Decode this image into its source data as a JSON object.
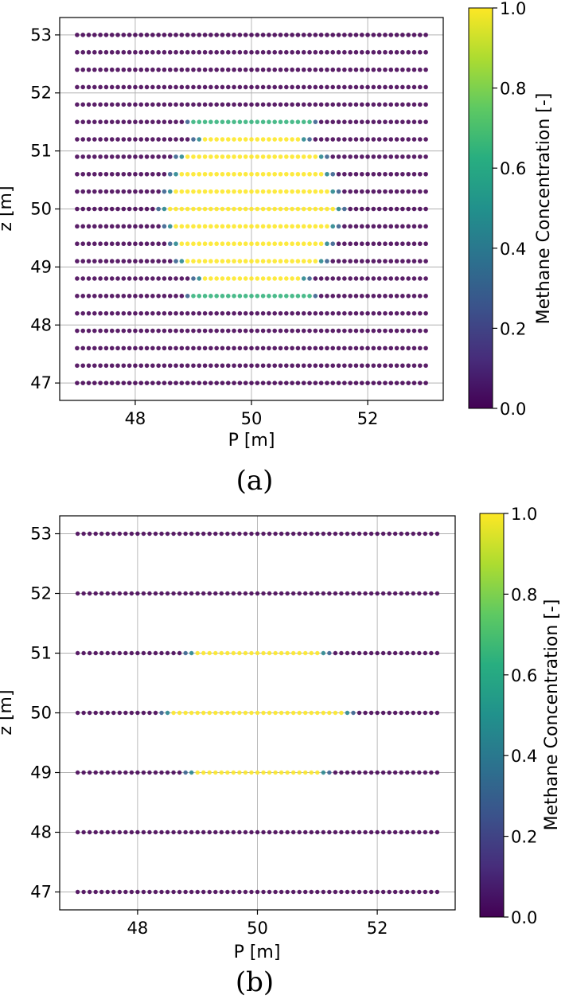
{
  "chart_data": [
    {
      "type": "scatter",
      "panel_label": "(a)",
      "xlabel": "P [m]",
      "ylabel": "z [m]",
      "xlim": [
        46.7,
        53.3
      ],
      "ylim": [
        46.7,
        53.3
      ],
      "xticks": [
        "48",
        "50",
        "52"
      ],
      "yticks": [
        "47",
        "48",
        "49",
        "50",
        "51",
        "52",
        "53"
      ],
      "grid": true,
      "x_range": [
        47.0,
        53.0
      ],
      "x_step": 0.1,
      "row_z": [
        47.0,
        47.3,
        47.6,
        47.9,
        48.2,
        48.5,
        48.8,
        49.1,
        49.4,
        49.7,
        50.0,
        50.3,
        50.6,
        50.9,
        51.2,
        51.5,
        51.8,
        52.1,
        52.4,
        52.7,
        53.0
      ],
      "high_concentration_regions": [
        {
          "z": 48.5,
          "x_from": 49.0,
          "x_to": 51.0,
          "value": 0.65
        },
        {
          "z": 48.8,
          "x_from": 49.1,
          "x_to": 50.9,
          "value": 1.0
        },
        {
          "z": 49.1,
          "x_from": 48.8,
          "x_to": 51.2,
          "value": 1.0
        },
        {
          "z": 49.4,
          "x_from": 48.7,
          "x_to": 51.3,
          "value": 1.0
        },
        {
          "z": 49.7,
          "x_from": 48.6,
          "x_to": 51.4,
          "value": 1.0
        },
        {
          "z": 50.0,
          "x_from": 48.5,
          "x_to": 51.5,
          "value": 1.0
        },
        {
          "z": 50.3,
          "x_from": 48.6,
          "x_to": 51.4,
          "value": 1.0
        },
        {
          "z": 50.6,
          "x_from": 48.7,
          "x_to": 51.3,
          "value": 1.0
        },
        {
          "z": 50.9,
          "x_from": 48.8,
          "x_to": 51.2,
          "value": 1.0
        },
        {
          "z": 51.2,
          "x_from": 49.1,
          "x_to": 50.9,
          "value": 1.0
        },
        {
          "z": 51.5,
          "x_from": 49.0,
          "x_to": 51.0,
          "value": 0.65
        }
      ],
      "colorbar": {
        "label": "Methane Concentration [-]",
        "range": [
          0.0,
          1.0
        ],
        "ticks": [
          "0.0",
          "0.2",
          "0.4",
          "0.6",
          "0.8",
          "1.0"
        ]
      }
    },
    {
      "type": "scatter",
      "panel_label": "(b)",
      "xlabel": "P [m]",
      "ylabel": "z [m]",
      "xlim": [
        46.7,
        53.3
      ],
      "ylim": [
        46.7,
        53.3
      ],
      "xticks": [
        "48",
        "50",
        "52"
      ],
      "yticks": [
        "47",
        "48",
        "49",
        "50",
        "51",
        "52",
        "53"
      ],
      "grid": true,
      "x_range": [
        47.0,
        53.0
      ],
      "x_step": 0.1,
      "row_z": [
        47.0,
        48.0,
        49.0,
        50.0,
        51.0,
        52.0,
        53.0
      ],
      "high_concentration_regions": [
        {
          "z": 49.0,
          "x_from": 48.9,
          "x_to": 51.1,
          "value": 1.0
        },
        {
          "z": 50.0,
          "x_from": 48.5,
          "x_to": 51.5,
          "value": 1.0
        },
        {
          "z": 51.0,
          "x_from": 48.9,
          "x_to": 51.1,
          "value": 1.0
        }
      ],
      "colorbar": {
        "label": "Methane Concentration [-]",
        "range": [
          0.0,
          1.0
        ],
        "ticks": [
          "0.0",
          "0.2",
          "0.4",
          "0.6",
          "0.8",
          "1.0"
        ]
      }
    }
  ],
  "colors": {
    "axis": "#000000",
    "grid": "#b0b0b0",
    "viridis_low": "#440154",
    "viridis_high": "#fde725"
  }
}
